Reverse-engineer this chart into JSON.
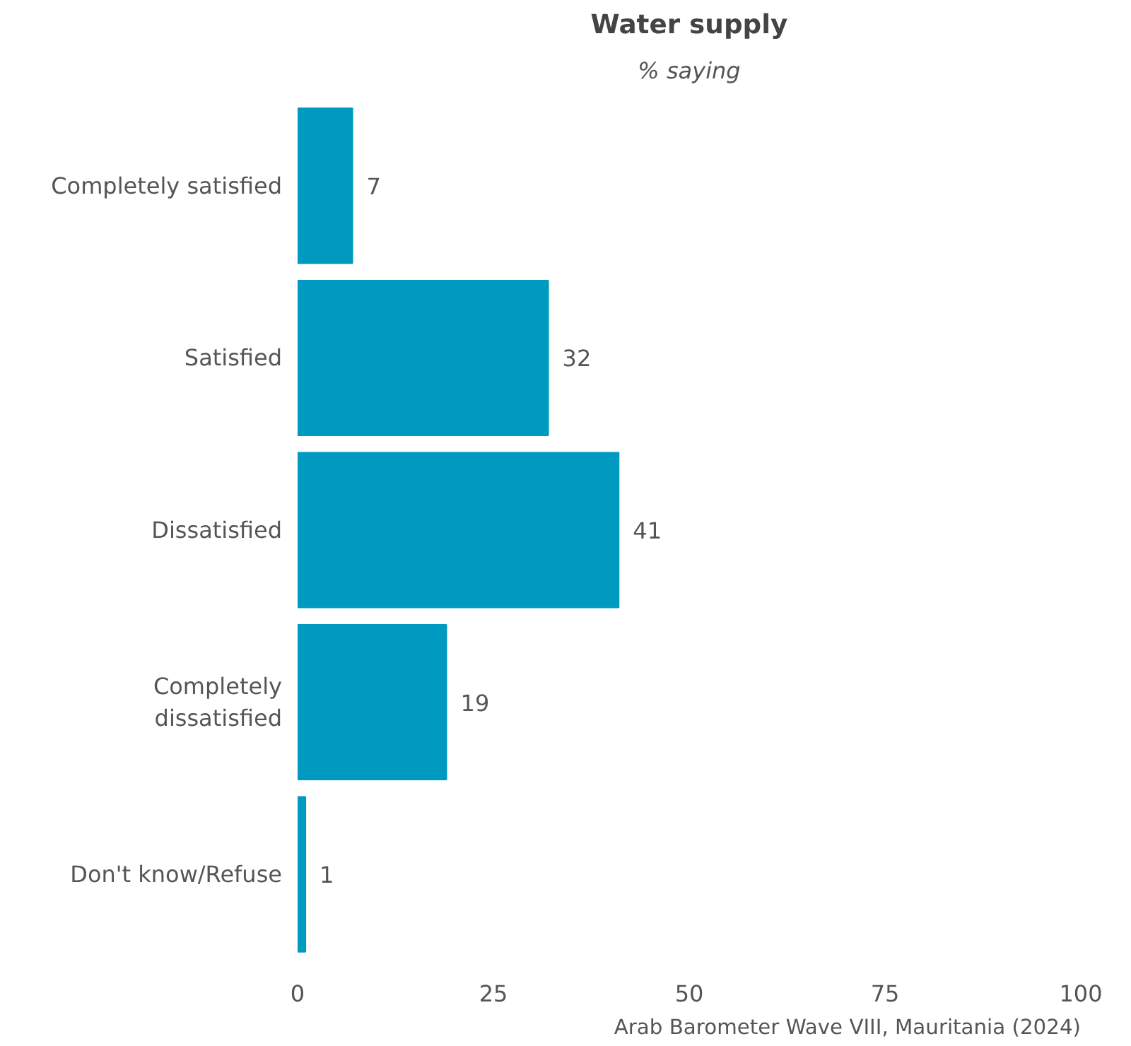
{
  "chart_data": {
    "type": "bar",
    "orientation": "horizontal",
    "title": "Water supply",
    "subtitle": "% saying",
    "categories": [
      "Completely satisfied",
      "Satisfied",
      "Dissatisfied",
      "Completely dissatisfied",
      "Don't know/Refuse"
    ],
    "values": [
      7,
      32,
      41,
      19,
      1
    ],
    "color": "#0099bf",
    "data_labels": true,
    "xlim": [
      0,
      100
    ],
    "xticks": [
      0,
      25,
      50,
      75,
      100
    ],
    "grid": false,
    "annotations": [
      "Arab Barometer Wave VIII, Mauritania (2024)"
    ]
  }
}
